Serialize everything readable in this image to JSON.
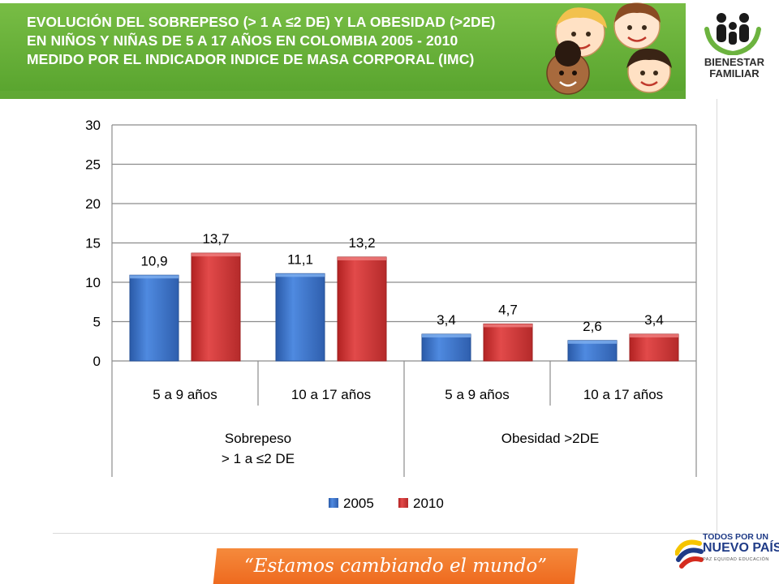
{
  "header": {
    "title_lines": [
      "EVOLUCIÓN DEL SOBREPESO (> 1 A ≤2 DE) Y LA OBESIDAD (>2DE)",
      "EN NIÑOS Y NIÑAS DE 5 A 17 AÑOS EN COLOMBIA 2005 - 2010",
      "MEDIDO POR EL INDICADOR INDICE DE MASA CORPORAL (IMC)"
    ],
    "logo_lines": [
      "BIENESTAR",
      "FAMILIAR"
    ]
  },
  "chart_data": {
    "type": "bar",
    "categories": [
      "5 a 9 años",
      "10 a 17 años",
      "5 a 9 años",
      "10 a 17 años"
    ],
    "groups": [
      {
        "lines": [
          "Sobrepeso",
          "> 1 a  ≤2 DE"
        ],
        "categories": [
          0,
          1
        ]
      },
      {
        "lines": [
          "Obesidad >2DE"
        ],
        "categories": [
          2,
          3
        ]
      }
    ],
    "series": [
      {
        "name": "2005",
        "color": "#3a74c8",
        "values": [
          10.9,
          11.1,
          3.4,
          2.6
        ],
        "labels": [
          "10,9",
          "11,1",
          "3,4",
          "2,6"
        ]
      },
      {
        "name": "2010",
        "color": "#d23a3a",
        "values": [
          13.7,
          13.2,
          4.7,
          3.4
        ],
        "labels": [
          "13,7",
          "13,2",
          "4,7",
          "3,4"
        ]
      }
    ],
    "yticks": [
      "0",
      "5",
      "10",
      "15",
      "20",
      "25",
      "30"
    ],
    "ylim": [
      0,
      30
    ],
    "grid": true,
    "legend": "bottom"
  },
  "footer": {
    "slogan": "“Estamos cambiando el mundo”",
    "gov_logo_lines": [
      "TODOS POR UN",
      "NUEVO PAÍS",
      "PAZ  EQUIDAD  EDUCACIÓN"
    ]
  }
}
